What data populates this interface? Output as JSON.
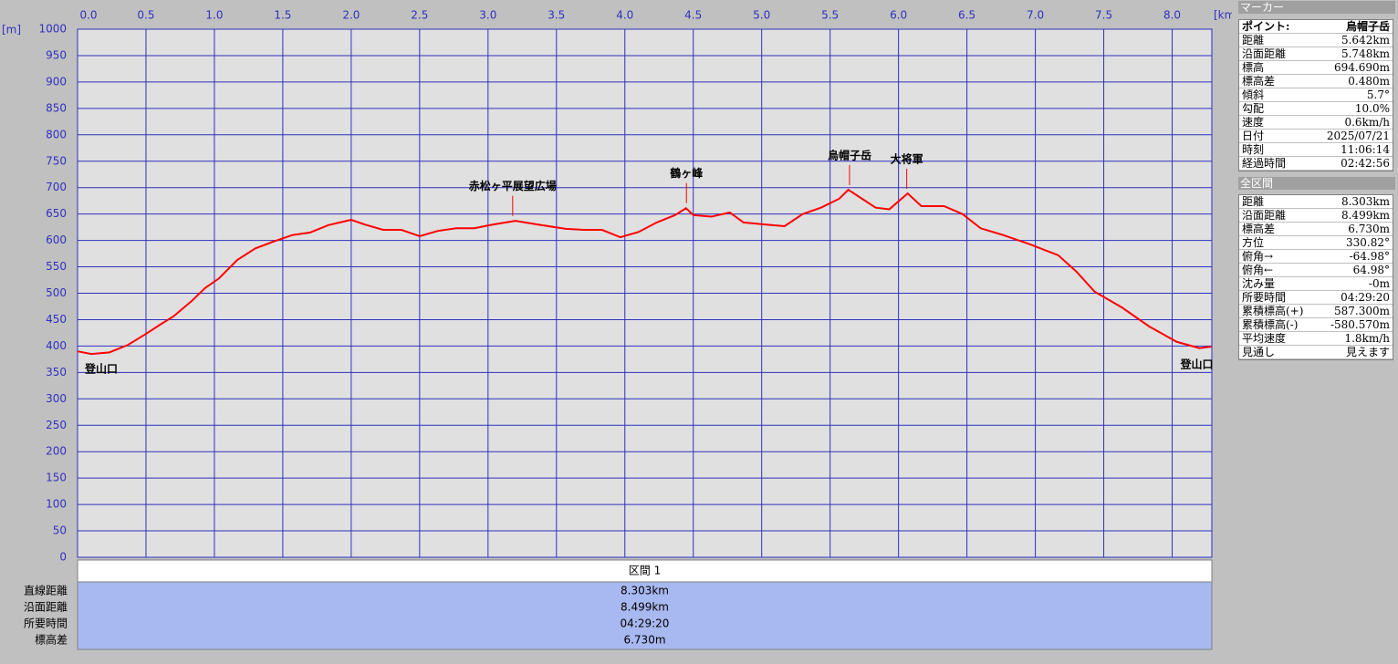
{
  "chart_data": {
    "type": "line",
    "y_label": "[m]",
    "x_label": "[km]",
    "x": [
      0,
      0.1,
      0.233,
      0.367,
      0.5,
      0.6,
      0.7,
      0.833,
      0.933,
      1.033,
      1.167,
      1.3,
      1.433,
      1.567,
      1.7,
      1.833,
      2,
      2.1,
      2.233,
      2.367,
      2.5,
      2.633,
      2.767,
      2.9,
      3.033,
      3.2,
      3.367,
      3.567,
      3.7,
      3.833,
      3.967,
      4.1,
      4.233,
      4.367,
      4.447,
      4.5,
      4.633,
      4.767,
      4.867,
      5.033,
      5.167,
      5.3,
      5.433,
      5.567,
      5.633,
      5.733,
      5.833,
      5.933,
      6.067,
      6.167,
      6.333,
      6.467,
      6.6,
      6.767,
      6.967,
      7.167,
      7.3,
      7.433,
      7.633,
      7.833,
      8.033,
      8.2,
      8.287
    ],
    "series": [
      {
        "name": "標高",
        "color": "#ff0000",
        "values": [
          390,
          385,
          388,
          402,
          423,
          440,
          456,
          485,
          510,
          528,
          563,
          585,
          598,
          610,
          615,
          629,
          639,
          630,
          620,
          620,
          608,
          618,
          623,
          623,
          630,
          637,
          630,
          622,
          620,
          620,
          606,
          616,
          634,
          648,
          661,
          648,
          645,
          653,
          634,
          630,
          627,
          650,
          662,
          679,
          696,
          679,
          662,
          659,
          689,
          665,
          665,
          650,
          623,
          610,
          592,
          572,
          541,
          503,
          473,
          437,
          408,
          396,
          399
        ]
      }
    ],
    "xlim": [
      0,
      8.29
    ],
    "ylim": [
      0,
      1000
    ],
    "xticks": [
      {
        "value": 0,
        "label": "0.0"
      },
      0.5,
      {
        "value": 1,
        "label": "1.0"
      },
      1.5,
      {
        "value": 2,
        "label": "2.0"
      },
      2.5,
      {
        "value": 3,
        "label": "3.0"
      },
      3.5,
      {
        "value": 4,
        "label": "4.0"
      },
      4.5,
      {
        "value": 5,
        "label": "5.0"
      },
      5.5,
      {
        "value": 6,
        "label": "6.0"
      },
      6.5,
      {
        "value": 7,
        "label": "7.0"
      },
      7.5,
      {
        "value": 8,
        "label": "8.0"
      }
    ],
    "yticks": [
      0,
      50,
      100,
      150,
      200,
      250,
      300,
      350,
      400,
      450,
      500,
      550,
      600,
      650,
      700,
      750,
      800,
      850,
      900,
      950,
      1000
    ],
    "grid": true,
    "annotations": [
      {
        "label": "登山口",
        "x": 0
      },
      {
        "label": "赤松ヶ平展望広場",
        "x": 3.18
      },
      {
        "label": "鶴ヶ峰",
        "x": 4.45
      },
      {
        "label": "烏帽子岳",
        "x": 5.642
      },
      {
        "label": "大将軍",
        "x": 6.06
      },
      {
        "label": "登山口",
        "x": 8.287
      }
    ]
  },
  "section": {
    "header": "区間 1",
    "rows": [
      [
        "直線距離",
        "8.303km"
      ],
      [
        "沿面距離",
        "8.499km"
      ],
      [
        "所要時間",
        "04:29:20"
      ],
      [
        "標高差",
        "6.730m"
      ]
    ]
  },
  "marker": {
    "title": "マーカー",
    "rows": [
      [
        "ポイント:",
        "烏帽子岳"
      ],
      [
        "距離",
        "5.642km"
      ],
      [
        "沿面距離",
        "5.748km"
      ],
      [
        "標高",
        "694.690m"
      ],
      [
        "標高差",
        "0.480m"
      ],
      [
        "傾斜",
        "5.7°"
      ],
      [
        "勾配",
        "10.0%"
      ],
      [
        "速度",
        "0.6km/h"
      ],
      [
        "日付",
        "2025/07/21"
      ],
      [
        "時刻",
        "11:06:14"
      ],
      [
        "経過時間",
        "02:42:56"
      ]
    ]
  },
  "total": {
    "title": "全区間",
    "rows": [
      [
        "距離",
        "8.303km"
      ],
      [
        "沿面距離",
        "8.499km"
      ],
      [
        "標高差",
        "6.730m"
      ],
      [
        "方位",
        "330.82°"
      ],
      [
        "俯角→",
        "-64.98°"
      ],
      [
        "俯角←",
        "64.98°"
      ],
      [
        "沈み量",
        "-0m"
      ],
      [
        "所要時間",
        "04:29:20"
      ],
      [
        "累積標高(+)",
        "587.300m"
      ],
      [
        "累積標高(-)",
        "-580.570m"
      ],
      [
        "平均速度",
        "1.8km/h"
      ],
      [
        "見通し",
        "見えます"
      ]
    ]
  }
}
